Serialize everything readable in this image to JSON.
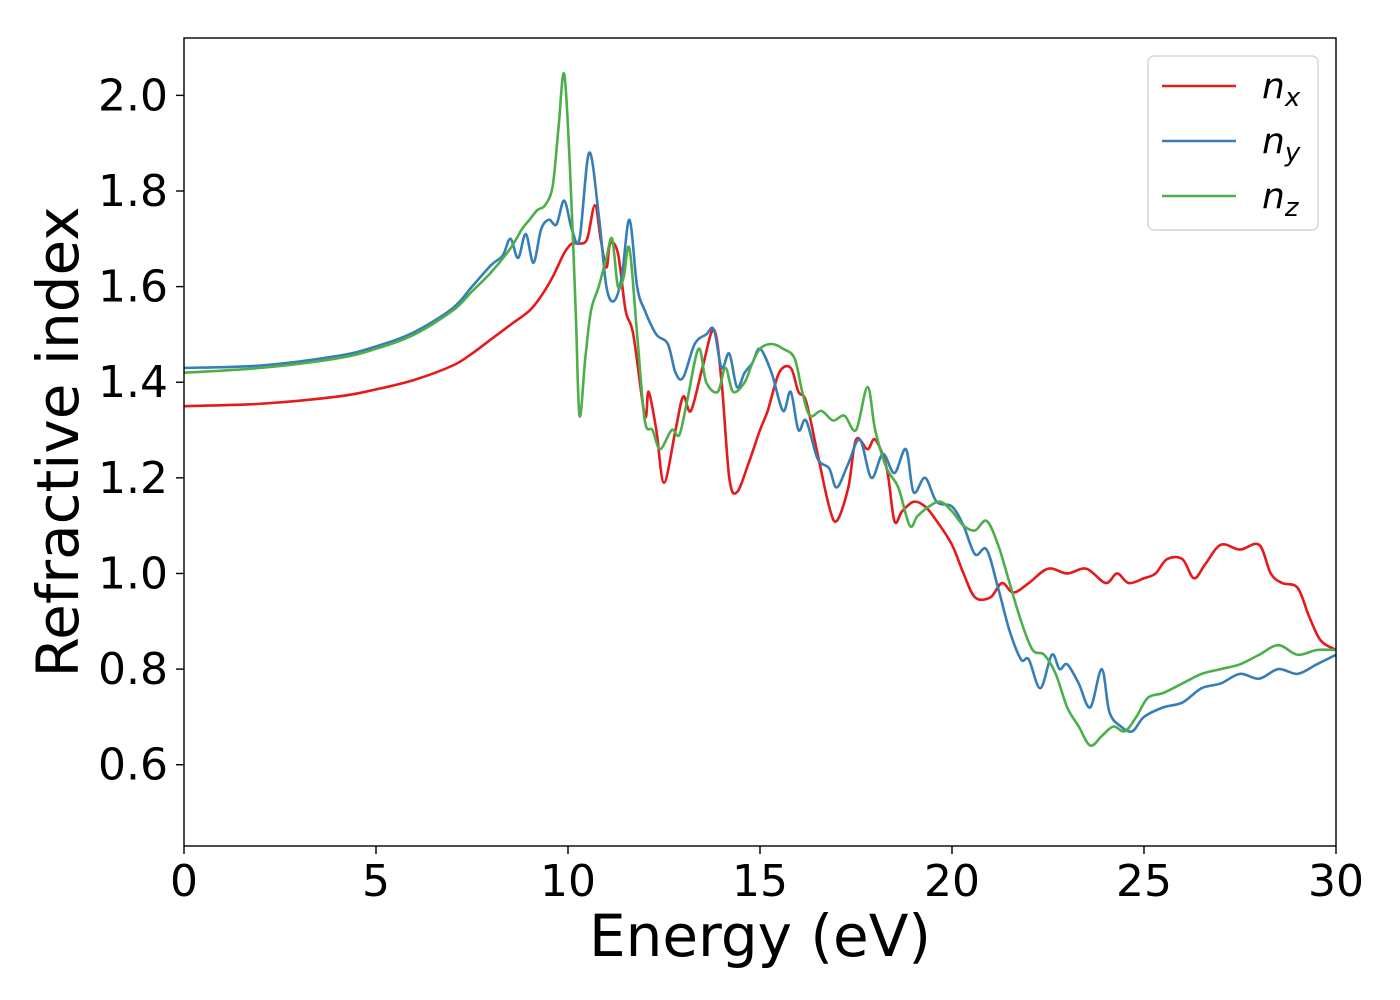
{
  "chart_data": {
    "type": "line",
    "title": "",
    "xlabel": "Energy (eV)",
    "ylabel": "Refractive index",
    "xlim": [
      0,
      30
    ],
    "ylim": [
      0.43,
      2.12
    ],
    "xticks": [
      0,
      5,
      10,
      15,
      20,
      25,
      30
    ],
    "xtick_labels": [
      "0",
      "5",
      "10",
      "15",
      "20",
      "25",
      "30"
    ],
    "yticks": [
      0.6,
      0.8,
      1.0,
      1.2,
      1.4,
      1.6,
      1.8,
      2.0
    ],
    "ytick_labels": [
      "0.6",
      "0.8",
      "1.0",
      "1.2",
      "1.4",
      "1.6",
      "1.8",
      "2.0"
    ],
    "grid": false,
    "legend_position": "top-right",
    "series": [
      {
        "name": "n",
        "subscript": "x",
        "color": "#e41a1c",
        "x": [
          0,
          2,
          4,
          5,
          6,
          7,
          7.5,
          8,
          8.5,
          9,
          9.3,
          9.6,
          9.9,
          10.1,
          10.3,
          10.5,
          10.7,
          10.85,
          11.0,
          11.1,
          11.3,
          11.5,
          11.7,
          12.0,
          12.1,
          12.3,
          12.5,
          12.8,
          13.0,
          13.2,
          13.5,
          13.8,
          14.0,
          14.2,
          14.4,
          14.7,
          15.0,
          15.2,
          15.5,
          15.8,
          16.0,
          16.2,
          16.5,
          16.8,
          17.0,
          17.3,
          17.5,
          17.8,
          18.0,
          18.3,
          18.5,
          18.7,
          19.0,
          19.3,
          19.6,
          20.0,
          20.3,
          20.6,
          21.0,
          21.3,
          21.6,
          22.0,
          22.5,
          23.0,
          23.5,
          24.0,
          24.3,
          24.6,
          25.0,
          25.3,
          25.6,
          26.0,
          26.3,
          26.6,
          27.0,
          27.5,
          28.0,
          28.3,
          28.6,
          29.0,
          29.3,
          29.6,
          30.0
        ],
        "y": [
          1.35,
          1.355,
          1.37,
          1.385,
          1.405,
          1.435,
          1.46,
          1.49,
          1.52,
          1.55,
          1.58,
          1.62,
          1.67,
          1.69,
          1.69,
          1.7,
          1.77,
          1.7,
          1.64,
          1.69,
          1.67,
          1.55,
          1.5,
          1.33,
          1.38,
          1.3,
          1.19,
          1.3,
          1.37,
          1.34,
          1.43,
          1.51,
          1.4,
          1.2,
          1.17,
          1.23,
          1.3,
          1.34,
          1.42,
          1.43,
          1.38,
          1.36,
          1.25,
          1.14,
          1.11,
          1.18,
          1.28,
          1.26,
          1.28,
          1.22,
          1.11,
          1.13,
          1.15,
          1.14,
          1.11,
          1.06,
          1.0,
          0.95,
          0.95,
          0.98,
          0.96,
          0.98,
          1.01,
          1.0,
          1.01,
          0.98,
          1.0,
          0.98,
          0.99,
          1.0,
          1.03,
          1.03,
          0.99,
          1.02,
          1.06,
          1.05,
          1.06,
          1.0,
          0.98,
          0.97,
          0.91,
          0.86,
          0.84
        ]
      },
      {
        "name": "n",
        "subscript": "y",
        "color": "#377eb8",
        "x": [
          0,
          2,
          4,
          5,
          6,
          7,
          7.5,
          8,
          8.3,
          8.5,
          8.7,
          8.9,
          9.1,
          9.3,
          9.5,
          9.7,
          9.9,
          10.1,
          10.3,
          10.55,
          10.8,
          11.0,
          11.2,
          11.4,
          11.6,
          11.8,
          12.0,
          12.3,
          12.6,
          12.8,
          13.0,
          13.3,
          13.6,
          13.8,
          14.0,
          14.2,
          14.4,
          14.6,
          14.8,
          15.0,
          15.3,
          15.6,
          15.8,
          16.0,
          16.2,
          16.5,
          16.8,
          17.0,
          17.3,
          17.6,
          17.9,
          18.2,
          18.5,
          18.8,
          19.0,
          19.3,
          19.6,
          20.0,
          20.3,
          20.6,
          20.9,
          21.2,
          21.5,
          21.8,
          22.0,
          22.3,
          22.6,
          22.8,
          23.0,
          23.3,
          23.6,
          23.9,
          24.1,
          24.4,
          24.7,
          25.0,
          25.5,
          26.0,
          26.5,
          27.0,
          27.5,
          28.0,
          28.5,
          29.0,
          29.5,
          30.0
        ],
        "y": [
          1.43,
          1.435,
          1.455,
          1.475,
          1.505,
          1.555,
          1.6,
          1.645,
          1.665,
          1.7,
          1.66,
          1.71,
          1.65,
          1.72,
          1.74,
          1.73,
          1.78,
          1.72,
          1.7,
          1.88,
          1.75,
          1.6,
          1.57,
          1.62,
          1.74,
          1.6,
          1.55,
          1.5,
          1.48,
          1.42,
          1.41,
          1.48,
          1.5,
          1.51,
          1.43,
          1.46,
          1.39,
          1.42,
          1.44,
          1.47,
          1.42,
          1.34,
          1.38,
          1.3,
          1.32,
          1.24,
          1.22,
          1.18,
          1.23,
          1.28,
          1.2,
          1.25,
          1.21,
          1.26,
          1.17,
          1.2,
          1.15,
          1.14,
          1.1,
          1.04,
          1.05,
          0.97,
          0.88,
          0.82,
          0.82,
          0.76,
          0.83,
          0.8,
          0.81,
          0.77,
          0.72,
          0.8,
          0.71,
          0.68,
          0.67,
          0.7,
          0.72,
          0.73,
          0.76,
          0.77,
          0.79,
          0.78,
          0.8,
          0.79,
          0.81,
          0.83
        ]
      },
      {
        "name": "n",
        "subscript": "z",
        "color": "#4daf4a",
        "x": [
          0,
          2,
          4,
          5,
          6,
          7,
          7.5,
          8,
          8.5,
          8.8,
          9.0,
          9.2,
          9.4,
          9.6,
          9.75,
          9.9,
          10.05,
          10.2,
          10.3,
          10.45,
          10.6,
          10.8,
          11.0,
          11.15,
          11.3,
          11.45,
          11.6,
          11.8,
          12.0,
          12.2,
          12.4,
          12.7,
          12.9,
          13.1,
          13.4,
          13.6,
          13.9,
          14.1,
          14.3,
          14.6,
          14.8,
          15.0,
          15.3,
          15.6,
          15.9,
          16.1,
          16.3,
          16.6,
          16.9,
          17.2,
          17.5,
          17.8,
          18.0,
          18.3,
          18.6,
          18.9,
          19.1,
          19.4,
          19.7,
          20.0,
          20.3,
          20.6,
          20.9,
          21.2,
          21.5,
          21.8,
          22.1,
          22.4,
          22.7,
          23.0,
          23.3,
          23.6,
          23.9,
          24.2,
          24.5,
          24.8,
          25.1,
          25.5,
          26.0,
          26.5,
          27.0,
          27.5,
          28.0,
          28.5,
          29.0,
          29.5,
          30.0
        ],
        "y": [
          1.42,
          1.43,
          1.45,
          1.47,
          1.5,
          1.55,
          1.59,
          1.63,
          1.68,
          1.72,
          1.74,
          1.76,
          1.77,
          1.81,
          1.93,
          2.045,
          1.85,
          1.55,
          1.33,
          1.45,
          1.55,
          1.6,
          1.66,
          1.7,
          1.6,
          1.62,
          1.68,
          1.5,
          1.32,
          1.3,
          1.26,
          1.3,
          1.29,
          1.36,
          1.47,
          1.4,
          1.38,
          1.43,
          1.38,
          1.4,
          1.44,
          1.47,
          1.48,
          1.47,
          1.45,
          1.38,
          1.33,
          1.34,
          1.32,
          1.33,
          1.3,
          1.39,
          1.3,
          1.22,
          1.18,
          1.1,
          1.12,
          1.14,
          1.15,
          1.13,
          1.1,
          1.09,
          1.11,
          1.06,
          0.98,
          0.9,
          0.84,
          0.83,
          0.79,
          0.72,
          0.68,
          0.64,
          0.66,
          0.68,
          0.67,
          0.7,
          0.74,
          0.75,
          0.77,
          0.79,
          0.8,
          0.81,
          0.83,
          0.85,
          0.83,
          0.84,
          0.84
        ]
      }
    ]
  }
}
